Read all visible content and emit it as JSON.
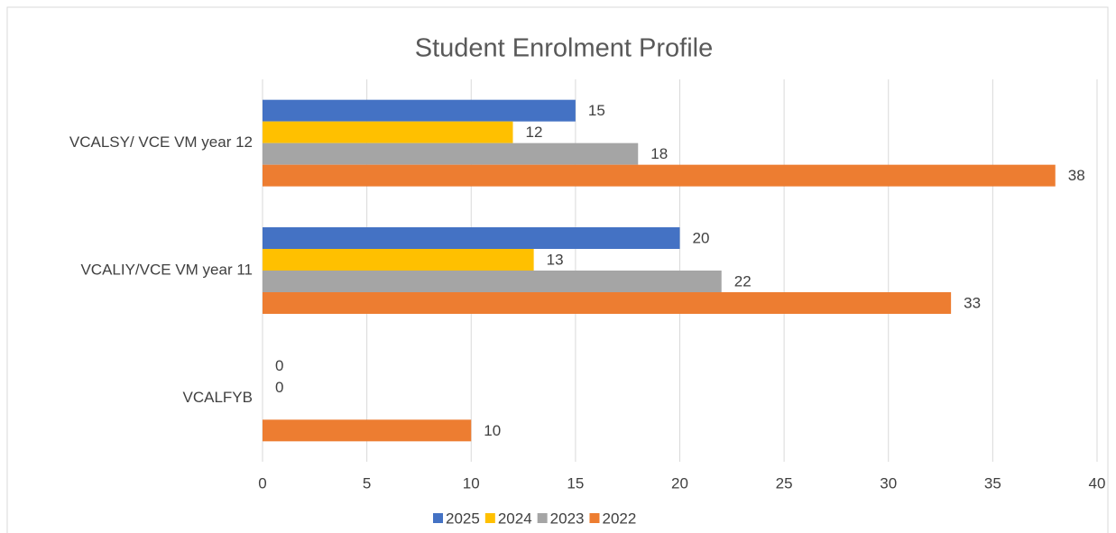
{
  "chart_data": {
    "type": "hbar",
    "title": "Student Enrolment Profile",
    "categories": [
      "VCALSY/ VCE VM year 12",
      "VCALIY/VCE VM year 11",
      "VCALFYB"
    ],
    "series": [
      {
        "name": "2025",
        "color": "#4472c4",
        "values": [
          15,
          20,
          0
        ]
      },
      {
        "name": "2024",
        "color": "#ffc000",
        "values": [
          12,
          13,
          0
        ]
      },
      {
        "name": "2023",
        "color": "#a5a5a5",
        "values": [
          18,
          22,
          null
        ]
      },
      {
        "name": "2022",
        "color": "#ed7d31",
        "values": [
          38,
          33,
          10
        ]
      }
    ],
    "xlim": [
      0,
      40
    ],
    "xticks": [
      0,
      5,
      10,
      15,
      20,
      25,
      30,
      35,
      40
    ],
    "grid": true,
    "legend": "bottom"
  }
}
